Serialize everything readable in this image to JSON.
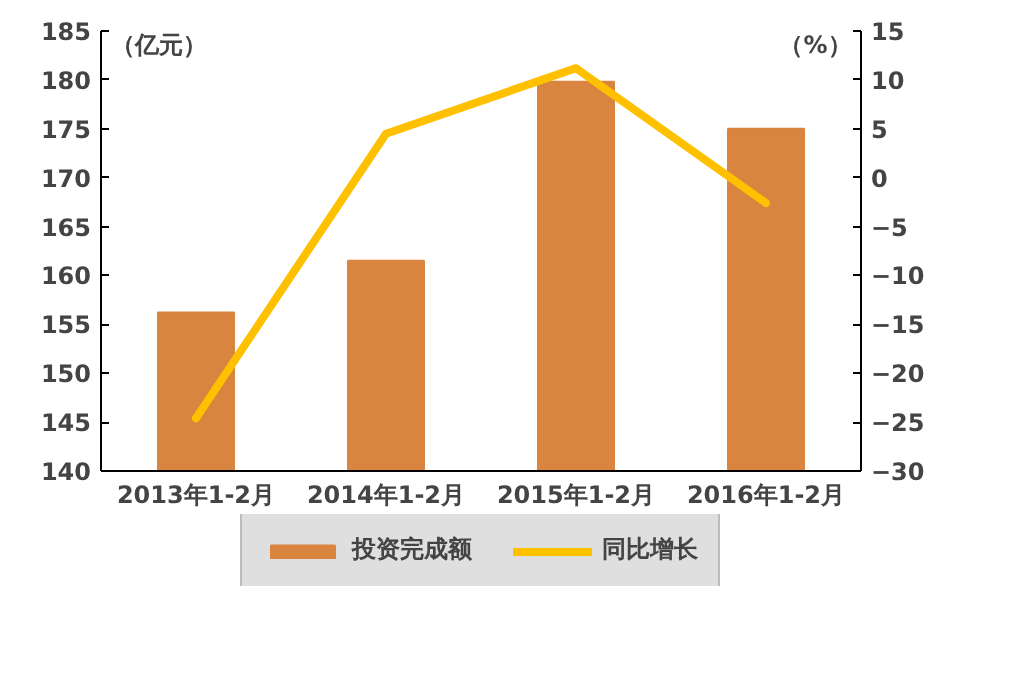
{
  "chart_data": {
    "type": "bar",
    "categories": [
      "2013年1-2月",
      "2014年1-2月",
      "2015年1-2月",
      "2016年1-2月"
    ],
    "series": [
      {
        "name": "投资完成额",
        "color": "#d9843f",
        "values": [
          156.2,
          161.5,
          179.8,
          175.0
        ]
      },
      {
        "name": "同比增长",
        "type": "line",
        "axis": "y2",
        "color": "#ffc000",
        "values": [
          -24.6,
          4.5,
          11.2,
          -2.6
        ]
      }
    ],
    "ylabel": "（亿元）",
    "y2label": "（%）",
    "ylim": [
      140,
      185
    ],
    "yticks": [
      140,
      145,
      150,
      155,
      160,
      165,
      170,
      175,
      180,
      185
    ],
    "y2lim": [
      -30,
      15
    ],
    "y2ticks": [
      -30,
      -25,
      -20,
      -15,
      -10,
      -5,
      0,
      5,
      10,
      15
    ],
    "grid": false,
    "legend": "bottom"
  }
}
